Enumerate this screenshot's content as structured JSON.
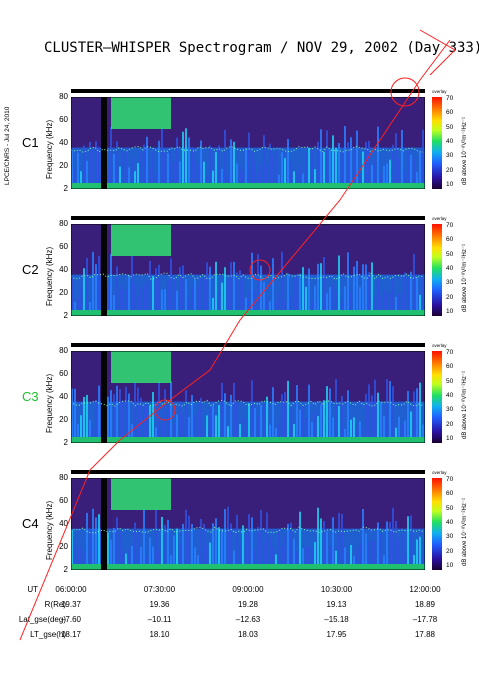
{
  "title": "CLUSTER–WHISPER Spectrogram / NOV 29, 2002 (Day 333)",
  "sidebar_text": "LPCE/CNRS - Jul 24, 2010",
  "colorbar": {
    "ticks": [
      "70",
      "60",
      "50",
      "40",
      "30",
      "20",
      "10"
    ],
    "label": "dB above 10⁻⁸V²m⁻²Hz⁻¹",
    "unit": "overlay"
  },
  "chart_data": {
    "type": "heatmap",
    "xlabel": "UT",
    "ylabel": "Frequency (kHz)",
    "ylim": [
      2,
      80
    ],
    "yticks": [
      "80",
      "60",
      "40",
      "20",
      "2"
    ],
    "clim": [
      10,
      70
    ],
    "x_ticks": [
      "06:00:00",
      "07:30:00",
      "09:00:00",
      "10:30:00",
      "12:00:00"
    ],
    "panels": [
      {
        "name": "C1",
        "color": "#000000"
      },
      {
        "name": "C2",
        "color": "#000000"
      },
      {
        "name": "C3",
        "color": "#1fbf2a"
      },
      {
        "name": "C4",
        "color": "#000000"
      }
    ],
    "orbit_rows": [
      {
        "label": "R(Re)",
        "values": [
          "19.37",
          "19.36",
          "19.28",
          "19.13",
          "18.89"
        ]
      },
      {
        "label": "Lat_gse(deg)",
        "values": [
          "–7.60",
          "–10.11",
          "–12.63",
          "–15.18",
          "–17.78"
        ]
      },
      {
        "label": "LT_gse(h)",
        "values": [
          "18.17",
          "18.10",
          "18.03",
          "17.95",
          "17.88"
        ]
      }
    ]
  }
}
